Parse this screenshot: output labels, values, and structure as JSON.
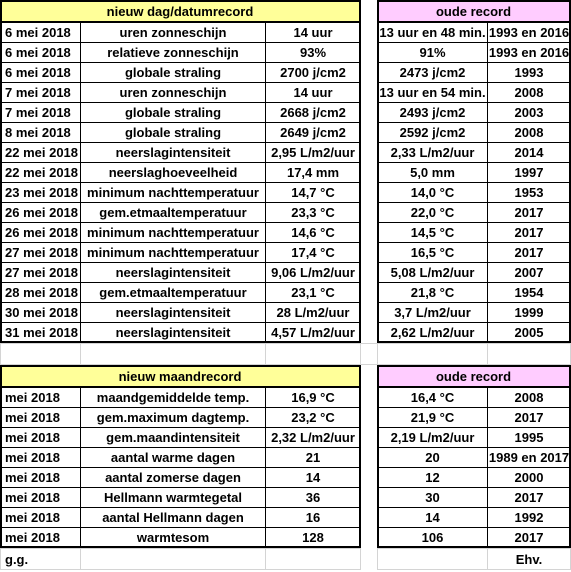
{
  "sections": [
    {
      "header": "nieuw dag/datumrecord",
      "old_header": "oude record",
      "rows": [
        [
          "6 mei 2018",
          "uren zonneschijn",
          "14 uur",
          "13 uur en 48 min.",
          "1993 en 2016"
        ],
        [
          "6 mei 2018",
          "relatieve zonneschijn",
          "93%",
          "91%",
          "1993 en 2016"
        ],
        [
          "6 mei 2018",
          "globale straling",
          "2700 j/cm2",
          "2473 j/cm2",
          "1993"
        ],
        [
          "7 mei 2018",
          "uren zonneschijn",
          "14 uur",
          "13 uur en 54 min.",
          "2008"
        ],
        [
          "7 mei 2018",
          "globale straling",
          "2668 j/cm2",
          "2493 j/cm2",
          "2003"
        ],
        [
          "8 mei 2018",
          "globale straling",
          "2649 j/cm2",
          "2592 j/cm2",
          "2008"
        ],
        [
          "22 mei 2018",
          "neerslagintensiteit",
          "2,95 L/m2/uur",
          "2,33 L/m2/uur",
          "2014"
        ],
        [
          "22 mei 2018",
          "neerslaghoeveelheid",
          "17,4 mm",
          "5,0 mm",
          "1997"
        ],
        [
          "23 mei 2018",
          "minimum nachttemperatuur",
          "14,7 °C",
          "14,0 °C",
          "1953"
        ],
        [
          "26 mei 2018",
          "gem.etmaaltemperatuur",
          "23,3 °C",
          "22,0 °C",
          "2017"
        ],
        [
          "26 mei 2018",
          "minimum nachttemperatuur",
          "14,6 °C",
          "14,5 °C",
          "2017"
        ],
        [
          "27 mei 2018",
          "minimum nachttemperatuur",
          "17,4 °C",
          "16,5 °C",
          "2017"
        ],
        [
          "27 mei 2018",
          "neerslagintensiteit",
          "9,06 L/m2/uur",
          "5,08 L/m2/uur",
          "2007"
        ],
        [
          "28 mei 2018",
          "gem.etmaaltemperatuur",
          "23,1 °C",
          "21,8 °C",
          "1954"
        ],
        [
          "30 mei 2018",
          "neerslagintensiteit",
          "28 L/m2/uur",
          "3,7 L/m2/uur",
          "1999"
        ],
        [
          "31 mei 2018",
          "neerslagintensiteit",
          "4,57 L/m2/uur",
          "2,62 L/m2/uur",
          "2005"
        ]
      ]
    },
    {
      "header": "nieuw maandrecord",
      "old_header": "oude record",
      "rows": [
        [
          "mei 2018",
          "maandgemiddelde temp.",
          "16,9 °C",
          "16,4 °C",
          "2008"
        ],
        [
          "mei 2018",
          "gem.maximum dagtemp.",
          "23,2 °C",
          "21,9 °C",
          "2017"
        ],
        [
          "mei 2018",
          "gem.maandintensiteit",
          "2,32 L/m2/uur",
          "2,19 L/m2/uur",
          "1995"
        ],
        [
          "mei 2018",
          "aantal warme dagen",
          "21",
          "20",
          "1989 en 2017"
        ],
        [
          "mei 2018",
          "aantal zomerse dagen",
          "14",
          "12",
          "2000"
        ],
        [
          "mei 2018",
          "Hellmann warmtegetal",
          "36",
          "30",
          "2017"
        ],
        [
          "mei 2018",
          "aantal Hellmann dagen",
          "16",
          "14",
          "1992"
        ],
        [
          "mei 2018",
          "warmtesom",
          "128",
          "106",
          "2017"
        ]
      ]
    }
  ],
  "footer": {
    "left": "g.g.",
    "right": "Ehv."
  }
}
